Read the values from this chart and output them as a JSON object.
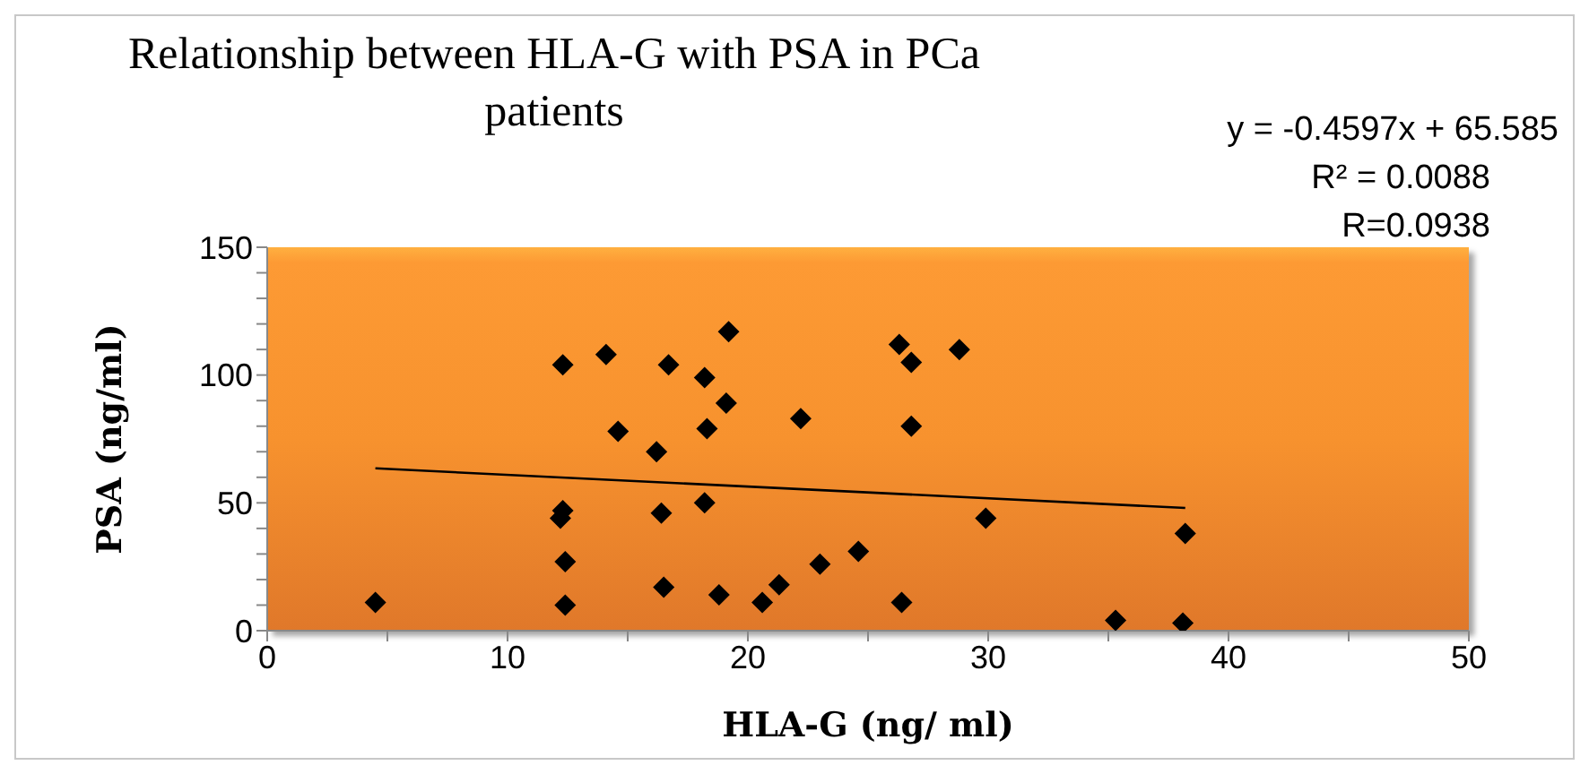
{
  "chart_data": {
    "type": "scatter",
    "title": "Relationship between HLA-G with PSA in PCa patients",
    "xlabel": "HLA-G (ng/ ml)",
    "ylabel": "PSA (ng/ml)",
    "annotations": [
      "y = -0.4597x + 65.585",
      "R² = 0.0088",
      "R=0.0938"
    ],
    "series": [
      {
        "type": "scatter",
        "color": "#000000",
        "marker": "diamond",
        "x": [
          4.5,
          12.3,
          12.3,
          12.2,
          12.4,
          12.4,
          14.1,
          14.6,
          16.2,
          16.4,
          16.5,
          16.7,
          18.2,
          18.3,
          18.2,
          18.8,
          19.2,
          19.1,
          20.6,
          21.3,
          22.2,
          23,
          24.6,
          26.3,
          26.4,
          26.8,
          26.8,
          28.8,
          29.9,
          35.3,
          38.2,
          38.1
        ],
        "values": [
          11,
          104,
          47,
          44,
          27,
          10,
          108,
          78,
          70,
          46,
          17,
          104,
          99,
          79,
          50,
          14,
          117,
          89,
          11,
          18,
          83,
          26,
          31,
          112,
          11,
          80,
          105,
          110,
          44,
          4,
          38,
          3
        ]
      },
      {
        "type": "line",
        "color": "#000000",
        "x": [
          4.5,
          38.2
        ],
        "values": [
          63.5,
          48.0
        ]
      }
    ],
    "xlim": [
      0,
      50
    ],
    "xticks": [
      0,
      {
        "value": 5,
        "label": null
      },
      10,
      {
        "value": 15,
        "label": null
      },
      20,
      {
        "value": 25,
        "label": null
      },
      30,
      {
        "value": 35,
        "label": null
      },
      40,
      {
        "value": 45,
        "label": null
      },
      50
    ],
    "ylim": [
      0,
      150
    ],
    "yticks": [
      0,
      {
        "value": 10,
        "label": null
      },
      {
        "value": 20,
        "label": null
      },
      {
        "value": 30,
        "label": null
      },
      {
        "value": 40,
        "label": null
      },
      50,
      {
        "value": 60,
        "label": null
      },
      {
        "value": 70,
        "label": null
      },
      {
        "value": 80,
        "label": null
      },
      {
        "value": 90,
        "label": null
      },
      100,
      {
        "value": 110,
        "label": null
      },
      {
        "value": 120,
        "label": null
      },
      {
        "value": 130,
        "label": null
      },
      {
        "value": 140,
        "label": null
      },
      150
    ],
    "grid": false,
    "legend": false
  }
}
